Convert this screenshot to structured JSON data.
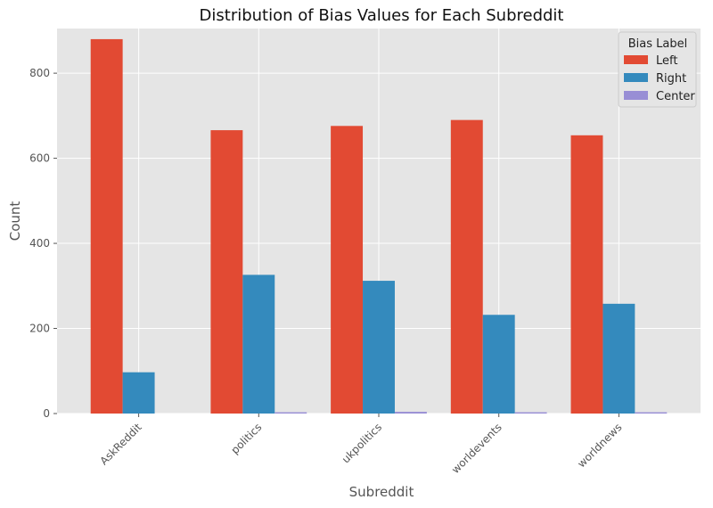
{
  "chart_data": {
    "type": "bar",
    "title": "Distribution of Bias Values for Each Subreddit",
    "xlabel": "Subreddit",
    "ylabel": "Count",
    "categories": [
      "AskReddit",
      "politics",
      "ukpolitics",
      "worldevents",
      "worldnews"
    ],
    "series": [
      {
        "name": "Left",
        "color": "#E24A33",
        "values": [
          880,
          666,
          676,
          690,
          654
        ]
      },
      {
        "name": "Right",
        "color": "#348ABD",
        "values": [
          97,
          326,
          312,
          232,
          258
        ]
      },
      {
        "name": "Center",
        "color": "#988ED5",
        "values": [
          0,
          3,
          4,
          3,
          3
        ]
      }
    ],
    "ylim": [
      0,
      905
    ],
    "yticks": [
      0,
      200,
      400,
      600,
      800
    ],
    "grid": true,
    "legend": {
      "title": "Bias Label",
      "position": "top-right"
    }
  }
}
